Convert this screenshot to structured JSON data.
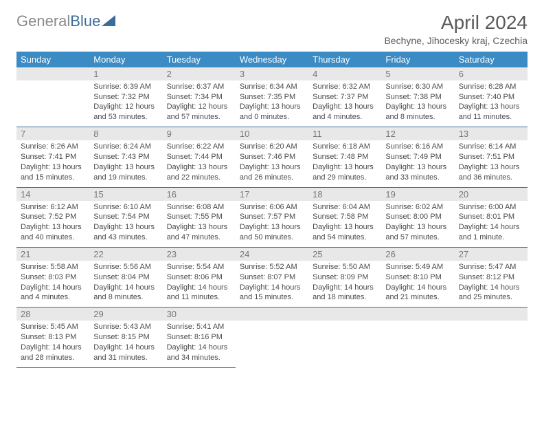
{
  "colors": {
    "accent": "#3b8bc4",
    "header_text": "#ffffff",
    "day_num_bg": "#e8e8e8",
    "day_num_color": "#777777",
    "divider": "#3b6d9b",
    "body_text": "#4a4a4a",
    "title_color": "#5a5a5a",
    "logo_gray": "#8a8a8a",
    "logo_blue": "#3b6d9b"
  },
  "logo": {
    "part1": "General",
    "part2": "Blue"
  },
  "title": "April 2024",
  "location": "Bechyne, Jihocesky kraj, Czechia",
  "weekday_headers": [
    "Sunday",
    "Monday",
    "Tuesday",
    "Wednesday",
    "Thursday",
    "Friday",
    "Saturday"
  ],
  "typography": {
    "title_fontsize": 28,
    "location_fontsize": 14,
    "header_fontsize": 13,
    "daynum_fontsize": 13,
    "body_fontsize": 11
  },
  "weeks": [
    {
      "daynums": [
        "",
        "1",
        "2",
        "3",
        "4",
        "5",
        "6"
      ],
      "cells": [
        null,
        {
          "sunrise": "Sunrise: 6:39 AM",
          "sunset": "Sunset: 7:32 PM",
          "daylight1": "Daylight: 12 hours",
          "daylight2": "and 53 minutes."
        },
        {
          "sunrise": "Sunrise: 6:37 AM",
          "sunset": "Sunset: 7:34 PM",
          "daylight1": "Daylight: 12 hours",
          "daylight2": "and 57 minutes."
        },
        {
          "sunrise": "Sunrise: 6:34 AM",
          "sunset": "Sunset: 7:35 PM",
          "daylight1": "Daylight: 13 hours",
          "daylight2": "and 0 minutes."
        },
        {
          "sunrise": "Sunrise: 6:32 AM",
          "sunset": "Sunset: 7:37 PM",
          "daylight1": "Daylight: 13 hours",
          "daylight2": "and 4 minutes."
        },
        {
          "sunrise": "Sunrise: 6:30 AM",
          "sunset": "Sunset: 7:38 PM",
          "daylight1": "Daylight: 13 hours",
          "daylight2": "and 8 minutes."
        },
        {
          "sunrise": "Sunrise: 6:28 AM",
          "sunset": "Sunset: 7:40 PM",
          "daylight1": "Daylight: 13 hours",
          "daylight2": "and 11 minutes."
        }
      ]
    },
    {
      "daynums": [
        "7",
        "8",
        "9",
        "10",
        "11",
        "12",
        "13"
      ],
      "cells": [
        {
          "sunrise": "Sunrise: 6:26 AM",
          "sunset": "Sunset: 7:41 PM",
          "daylight1": "Daylight: 13 hours",
          "daylight2": "and 15 minutes."
        },
        {
          "sunrise": "Sunrise: 6:24 AM",
          "sunset": "Sunset: 7:43 PM",
          "daylight1": "Daylight: 13 hours",
          "daylight2": "and 19 minutes."
        },
        {
          "sunrise": "Sunrise: 6:22 AM",
          "sunset": "Sunset: 7:44 PM",
          "daylight1": "Daylight: 13 hours",
          "daylight2": "and 22 minutes."
        },
        {
          "sunrise": "Sunrise: 6:20 AM",
          "sunset": "Sunset: 7:46 PM",
          "daylight1": "Daylight: 13 hours",
          "daylight2": "and 26 minutes."
        },
        {
          "sunrise": "Sunrise: 6:18 AM",
          "sunset": "Sunset: 7:48 PM",
          "daylight1": "Daylight: 13 hours",
          "daylight2": "and 29 minutes."
        },
        {
          "sunrise": "Sunrise: 6:16 AM",
          "sunset": "Sunset: 7:49 PM",
          "daylight1": "Daylight: 13 hours",
          "daylight2": "and 33 minutes."
        },
        {
          "sunrise": "Sunrise: 6:14 AM",
          "sunset": "Sunset: 7:51 PM",
          "daylight1": "Daylight: 13 hours",
          "daylight2": "and 36 minutes."
        }
      ]
    },
    {
      "daynums": [
        "14",
        "15",
        "16",
        "17",
        "18",
        "19",
        "20"
      ],
      "cells": [
        {
          "sunrise": "Sunrise: 6:12 AM",
          "sunset": "Sunset: 7:52 PM",
          "daylight1": "Daylight: 13 hours",
          "daylight2": "and 40 minutes."
        },
        {
          "sunrise": "Sunrise: 6:10 AM",
          "sunset": "Sunset: 7:54 PM",
          "daylight1": "Daylight: 13 hours",
          "daylight2": "and 43 minutes."
        },
        {
          "sunrise": "Sunrise: 6:08 AM",
          "sunset": "Sunset: 7:55 PM",
          "daylight1": "Daylight: 13 hours",
          "daylight2": "and 47 minutes."
        },
        {
          "sunrise": "Sunrise: 6:06 AM",
          "sunset": "Sunset: 7:57 PM",
          "daylight1": "Daylight: 13 hours",
          "daylight2": "and 50 minutes."
        },
        {
          "sunrise": "Sunrise: 6:04 AM",
          "sunset": "Sunset: 7:58 PM",
          "daylight1": "Daylight: 13 hours",
          "daylight2": "and 54 minutes."
        },
        {
          "sunrise": "Sunrise: 6:02 AM",
          "sunset": "Sunset: 8:00 PM",
          "daylight1": "Daylight: 13 hours",
          "daylight2": "and 57 minutes."
        },
        {
          "sunrise": "Sunrise: 6:00 AM",
          "sunset": "Sunset: 8:01 PM",
          "daylight1": "Daylight: 14 hours",
          "daylight2": "and 1 minute."
        }
      ]
    },
    {
      "daynums": [
        "21",
        "22",
        "23",
        "24",
        "25",
        "26",
        "27"
      ],
      "cells": [
        {
          "sunrise": "Sunrise: 5:58 AM",
          "sunset": "Sunset: 8:03 PM",
          "daylight1": "Daylight: 14 hours",
          "daylight2": "and 4 minutes."
        },
        {
          "sunrise": "Sunrise: 5:56 AM",
          "sunset": "Sunset: 8:04 PM",
          "daylight1": "Daylight: 14 hours",
          "daylight2": "and 8 minutes."
        },
        {
          "sunrise": "Sunrise: 5:54 AM",
          "sunset": "Sunset: 8:06 PM",
          "daylight1": "Daylight: 14 hours",
          "daylight2": "and 11 minutes."
        },
        {
          "sunrise": "Sunrise: 5:52 AM",
          "sunset": "Sunset: 8:07 PM",
          "daylight1": "Daylight: 14 hours",
          "daylight2": "and 15 minutes."
        },
        {
          "sunrise": "Sunrise: 5:50 AM",
          "sunset": "Sunset: 8:09 PM",
          "daylight1": "Daylight: 14 hours",
          "daylight2": "and 18 minutes."
        },
        {
          "sunrise": "Sunrise: 5:49 AM",
          "sunset": "Sunset: 8:10 PM",
          "daylight1": "Daylight: 14 hours",
          "daylight2": "and 21 minutes."
        },
        {
          "sunrise": "Sunrise: 5:47 AM",
          "sunset": "Sunset: 8:12 PM",
          "daylight1": "Daylight: 14 hours",
          "daylight2": "and 25 minutes."
        }
      ]
    },
    {
      "daynums": [
        "28",
        "29",
        "30",
        "",
        "",
        "",
        ""
      ],
      "cells": [
        {
          "sunrise": "Sunrise: 5:45 AM",
          "sunset": "Sunset: 8:13 PM",
          "daylight1": "Daylight: 14 hours",
          "daylight2": "and 28 minutes."
        },
        {
          "sunrise": "Sunrise: 5:43 AM",
          "sunset": "Sunset: 8:15 PM",
          "daylight1": "Daylight: 14 hours",
          "daylight2": "and 31 minutes."
        },
        {
          "sunrise": "Sunrise: 5:41 AM",
          "sunset": "Sunset: 8:16 PM",
          "daylight1": "Daylight: 14 hours",
          "daylight2": "and 34 minutes."
        },
        null,
        null,
        null,
        null
      ]
    }
  ]
}
